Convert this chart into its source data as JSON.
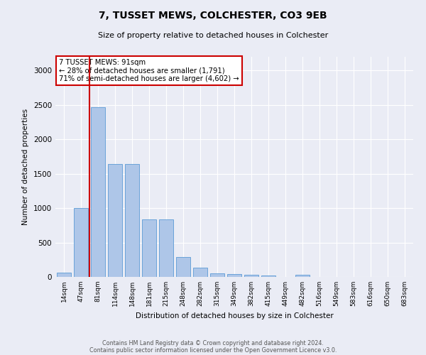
{
  "title_line1": "7, TUSSET MEWS, COLCHESTER, CO3 9EB",
  "title_line2": "Size of property relative to detached houses in Colchester",
  "xlabel": "Distribution of detached houses by size in Colchester",
  "ylabel": "Number of detached properties",
  "footer_line1": "Contains HM Land Registry data © Crown copyright and database right 2024.",
  "footer_line2": "Contains public sector information licensed under the Open Government Licence v3.0.",
  "annotation_line1": "7 TUSSET MEWS: 91sqm",
  "annotation_line2": "← 28% of detached houses are smaller (1,791)",
  "annotation_line3": "71% of semi-detached houses are larger (4,602) →",
  "bar_color": "#aec6e8",
  "bar_edge_color": "#5b9bd5",
  "vline_color": "#cc0000",
  "categories": [
    "14sqm",
    "47sqm",
    "81sqm",
    "114sqm",
    "148sqm",
    "181sqm",
    "215sqm",
    "248sqm",
    "282sqm",
    "315sqm",
    "349sqm",
    "382sqm",
    "415sqm",
    "449sqm",
    "482sqm",
    "516sqm",
    "549sqm",
    "583sqm",
    "616sqm",
    "650sqm",
    "683sqm"
  ],
  "values": [
    60,
    1000,
    2470,
    1640,
    1640,
    840,
    840,
    290,
    135,
    55,
    45,
    35,
    18,
    0,
    28,
    0,
    0,
    0,
    0,
    0,
    0
  ],
  "ylim": [
    0,
    3200
  ],
  "yticks": [
    0,
    500,
    1000,
    1500,
    2000,
    2500,
    3000
  ],
  "background_color": "#eaecf5",
  "plot_bg_color": "#eaecf5",
  "grid_color": "#ffffff",
  "box_facecolor": "#ffffff",
  "box_edgecolor": "#cc0000",
  "vline_xindex": 1.5
}
